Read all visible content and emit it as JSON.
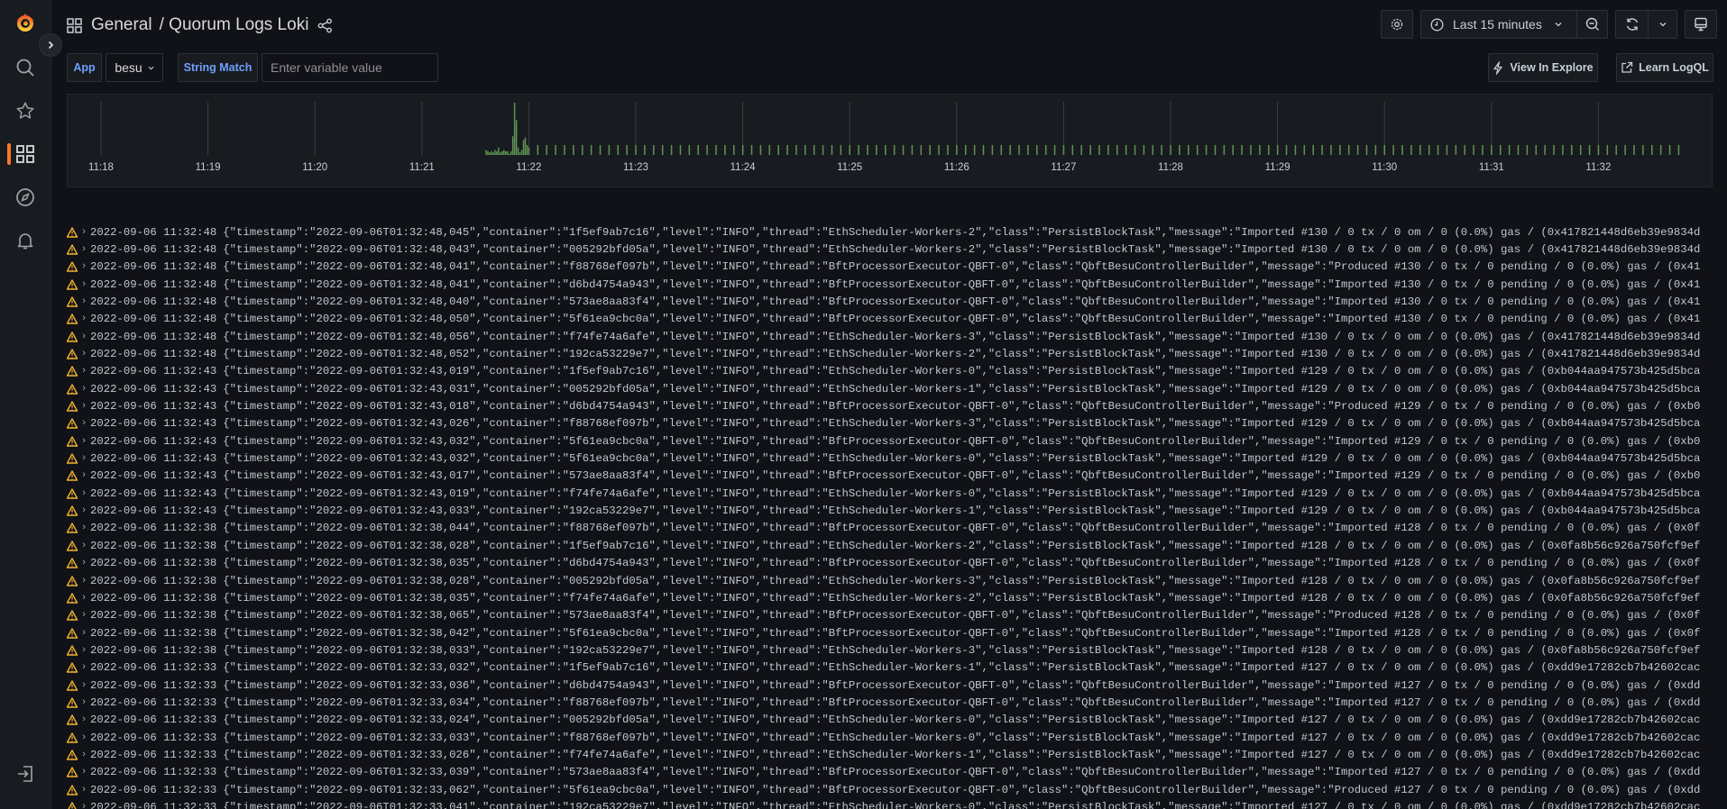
{
  "header": {
    "breadcrumb_folder": "General",
    "breadcrumb_title": "/ Quorum Logs Loki"
  },
  "toolbar": {
    "time_range": "Last 15 minutes",
    "view_in_explore": "View In Explore",
    "learn_logql": "Learn LogQL"
  },
  "variables": {
    "app_label": "App",
    "app_value": "besu",
    "string_match_label": "String Match",
    "string_match_placeholder": "Enter variable value",
    "string_match_value": ""
  },
  "colors": {
    "accent_orange": "#f5782a",
    "label_blue": "#6e9fff",
    "histogram_bar": "#5f9453",
    "warning": "#f2b430"
  },
  "chart_data": {
    "type": "bar",
    "x_tick_labels": [
      "11:18",
      "11:19",
      "11:20",
      "11:21",
      "11:22",
      "11:23",
      "11:24",
      "11:25",
      "11:26",
      "11:27",
      "11:28",
      "11:29",
      "11:30",
      "11:31",
      "11:32"
    ],
    "xlim": [
      "11:17:40",
      "11:33:00"
    ],
    "grid": "vertical",
    "burst": {
      "x": [
        "11:21:36",
        "11:21:37",
        "11:21:38",
        "11:21:39",
        "11:21:40",
        "11:21:41",
        "11:21:42",
        "11:21:43",
        "11:21:44",
        "11:21:45",
        "11:21:46",
        "11:21:47",
        "11:21:48",
        "11:21:49",
        "11:21:50",
        "11:21:51",
        "11:21:52",
        "11:21:53",
        "11:21:54",
        "11:21:55",
        "11:21:56",
        "11:21:57",
        "11:21:58",
        "11:21:59",
        "11:22:00"
      ],
      "values": [
        4,
        3,
        2,
        3,
        2,
        4,
        3,
        6,
        2,
        3,
        4,
        3,
        3,
        1,
        3,
        15,
        42,
        28,
        6,
        2,
        4,
        12,
        14,
        8,
        6
      ]
    },
    "regular": {
      "start": "11:22:05",
      "end": "11:32:45",
      "step_seconds": 5,
      "value": 8
    }
  },
  "logs": [
    {
      "time": "2022-09-06 11:32:48",
      "line": "{\"timestamp\":\"2022-09-06T01:32:48,045\",\"container\":\"1f5ef9ab7c16\",\"level\":\"INFO\",\"thread\":\"EthScheduler-Workers-2\",\"class\":\"PersistBlockTask\",\"message\":\"Imported #130 / 0 tx / 0 om / 0 (0.0%) gas / (0x417821448d6eb39e9834d"
    },
    {
      "time": "2022-09-06 11:32:48",
      "line": "{\"timestamp\":\"2022-09-06T01:32:48,043\",\"container\":\"005292bfd05a\",\"level\":\"INFO\",\"thread\":\"EthScheduler-Workers-2\",\"class\":\"PersistBlockTask\",\"message\":\"Imported #130 / 0 tx / 0 om / 0 (0.0%) gas / (0x417821448d6eb39e9834d"
    },
    {
      "time": "2022-09-06 11:32:48",
      "line": "{\"timestamp\":\"2022-09-06T01:32:48,041\",\"container\":\"f88768ef097b\",\"level\":\"INFO\",\"thread\":\"BftProcessorExecutor-QBFT-0\",\"class\":\"QbftBesuControllerBuilder\",\"message\":\"Produced #130 / 0 tx / 0 pending / 0 (0.0%) gas / (0x41"
    },
    {
      "time": "2022-09-06 11:32:48",
      "line": "{\"timestamp\":\"2022-09-06T01:32:48,041\",\"container\":\"d6bd4754a943\",\"level\":\"INFO\",\"thread\":\"BftProcessorExecutor-QBFT-0\",\"class\":\"QbftBesuControllerBuilder\",\"message\":\"Imported #130 / 0 tx / 0 pending / 0 (0.0%) gas / (0x41"
    },
    {
      "time": "2022-09-06 11:32:48",
      "line": "{\"timestamp\":\"2022-09-06T01:32:48,040\",\"container\":\"573ae8aa83f4\",\"level\":\"INFO\",\"thread\":\"BftProcessorExecutor-QBFT-0\",\"class\":\"QbftBesuControllerBuilder\",\"message\":\"Imported #130 / 0 tx / 0 pending / 0 (0.0%) gas / (0x41"
    },
    {
      "time": "2022-09-06 11:32:48",
      "line": "{\"timestamp\":\"2022-09-06T01:32:48,050\",\"container\":\"5f61ea9cbc0a\",\"level\":\"INFO\",\"thread\":\"BftProcessorExecutor-QBFT-0\",\"class\":\"QbftBesuControllerBuilder\",\"message\":\"Imported #130 / 0 tx / 0 pending / 0 (0.0%) gas / (0x41"
    },
    {
      "time": "2022-09-06 11:32:48",
      "line": "{\"timestamp\":\"2022-09-06T01:32:48,056\",\"container\":\"f74fe74a6afe\",\"level\":\"INFO\",\"thread\":\"EthScheduler-Workers-3\",\"class\":\"PersistBlockTask\",\"message\":\"Imported #130 / 0 tx / 0 om / 0 (0.0%) gas / (0x417821448d6eb39e9834d"
    },
    {
      "time": "2022-09-06 11:32:48",
      "line": "{\"timestamp\":\"2022-09-06T01:32:48,052\",\"container\":\"192ca53229e7\",\"level\":\"INFO\",\"thread\":\"EthScheduler-Workers-2\",\"class\":\"PersistBlockTask\",\"message\":\"Imported #130 / 0 tx / 0 om / 0 (0.0%) gas / (0x417821448d6eb39e9834d"
    },
    {
      "time": "2022-09-06 11:32:43",
      "line": "{\"timestamp\":\"2022-09-06T01:32:43,019\",\"container\":\"1f5ef9ab7c16\",\"level\":\"INFO\",\"thread\":\"EthScheduler-Workers-0\",\"class\":\"PersistBlockTask\",\"message\":\"Imported #129 / 0 tx / 0 om / 0 (0.0%) gas / (0xb044aa947573b425d5bca"
    },
    {
      "time": "2022-09-06 11:32:43",
      "line": "{\"timestamp\":\"2022-09-06T01:32:43,031\",\"container\":\"005292bfd05a\",\"level\":\"INFO\",\"thread\":\"EthScheduler-Workers-1\",\"class\":\"PersistBlockTask\",\"message\":\"Imported #129 / 0 tx / 0 om / 0 (0.0%) gas / (0xb044aa947573b425d5bca"
    },
    {
      "time": "2022-09-06 11:32:43",
      "line": "{\"timestamp\":\"2022-09-06T01:32:43,018\",\"container\":\"d6bd4754a943\",\"level\":\"INFO\",\"thread\":\"BftProcessorExecutor-QBFT-0\",\"class\":\"QbftBesuControllerBuilder\",\"message\":\"Produced #129 / 0 tx / 0 pending / 0 (0.0%) gas / (0xb0"
    },
    {
      "time": "2022-09-06 11:32:43",
      "line": "{\"timestamp\":\"2022-09-06T01:32:43,026\",\"container\":\"f88768ef097b\",\"level\":\"INFO\",\"thread\":\"EthScheduler-Workers-3\",\"class\":\"PersistBlockTask\",\"message\":\"Imported #129 / 0 tx / 0 om / 0 (0.0%) gas / (0xb044aa947573b425d5bca"
    },
    {
      "time": "2022-09-06 11:32:43",
      "line": "{\"timestamp\":\"2022-09-06T01:32:43,032\",\"container\":\"5f61ea9cbc0a\",\"level\":\"INFO\",\"thread\":\"BftProcessorExecutor-QBFT-0\",\"class\":\"QbftBesuControllerBuilder\",\"message\":\"Imported #129 / 0 tx / 0 pending / 0 (0.0%) gas / (0xb0"
    },
    {
      "time": "2022-09-06 11:32:43",
      "line": "{\"timestamp\":\"2022-09-06T01:32:43,032\",\"container\":\"5f61ea9cbc0a\",\"level\":\"INFO\",\"thread\":\"EthScheduler-Workers-0\",\"class\":\"PersistBlockTask\",\"message\":\"Imported #129 / 0 tx / 0 om / 0 (0.0%) gas / (0xb044aa947573b425d5bca"
    },
    {
      "time": "2022-09-06 11:32:43",
      "line": "{\"timestamp\":\"2022-09-06T01:32:43,017\",\"container\":\"573ae8aa83f4\",\"level\":\"INFO\",\"thread\":\"BftProcessorExecutor-QBFT-0\",\"class\":\"QbftBesuControllerBuilder\",\"message\":\"Imported #129 / 0 tx / 0 pending / 0 (0.0%) gas / (0xb0"
    },
    {
      "time": "2022-09-06 11:32:43",
      "line": "{\"timestamp\":\"2022-09-06T01:32:43,019\",\"container\":\"f74fe74a6afe\",\"level\":\"INFO\",\"thread\":\"EthScheduler-Workers-0\",\"class\":\"PersistBlockTask\",\"message\":\"Imported #129 / 0 tx / 0 om / 0 (0.0%) gas / (0xb044aa947573b425d5bca"
    },
    {
      "time": "2022-09-06 11:32:43",
      "line": "{\"timestamp\":\"2022-09-06T01:32:43,033\",\"container\":\"192ca53229e7\",\"level\":\"INFO\",\"thread\":\"EthScheduler-Workers-1\",\"class\":\"PersistBlockTask\",\"message\":\"Imported #129 / 0 tx / 0 om / 0 (0.0%) gas / (0xb044aa947573b425d5bca"
    },
    {
      "time": "2022-09-06 11:32:38",
      "line": "{\"timestamp\":\"2022-09-06T01:32:38,044\",\"container\":\"f88768ef097b\",\"level\":\"INFO\",\"thread\":\"BftProcessorExecutor-QBFT-0\",\"class\":\"QbftBesuControllerBuilder\",\"message\":\"Imported #128 / 0 tx / 0 pending / 0 (0.0%) gas / (0x0f"
    },
    {
      "time": "2022-09-06 11:32:38",
      "line": "{\"timestamp\":\"2022-09-06T01:32:38,028\",\"container\":\"1f5ef9ab7c16\",\"level\":\"INFO\",\"thread\":\"EthScheduler-Workers-2\",\"class\":\"PersistBlockTask\",\"message\":\"Imported #128 / 0 tx / 0 om / 0 (0.0%) gas / (0x0fa8b56c926a750fcf9ef"
    },
    {
      "time": "2022-09-06 11:32:38",
      "line": "{\"timestamp\":\"2022-09-06T01:32:38,035\",\"container\":\"d6bd4754a943\",\"level\":\"INFO\",\"thread\":\"BftProcessorExecutor-QBFT-0\",\"class\":\"QbftBesuControllerBuilder\",\"message\":\"Imported #128 / 0 tx / 0 pending / 0 (0.0%) gas / (0x0f"
    },
    {
      "time": "2022-09-06 11:32:38",
      "line": "{\"timestamp\":\"2022-09-06T01:32:38,028\",\"container\":\"005292bfd05a\",\"level\":\"INFO\",\"thread\":\"EthScheduler-Workers-3\",\"class\":\"PersistBlockTask\",\"message\":\"Imported #128 / 0 tx / 0 om / 0 (0.0%) gas / (0x0fa8b56c926a750fcf9ef"
    },
    {
      "time": "2022-09-06 11:32:38",
      "line": "{\"timestamp\":\"2022-09-06T01:32:38,035\",\"container\":\"f74fe74a6afe\",\"level\":\"INFO\",\"thread\":\"EthScheduler-Workers-2\",\"class\":\"PersistBlockTask\",\"message\":\"Imported #128 / 0 tx / 0 om / 0 (0.0%) gas / (0x0fa8b56c926a750fcf9ef"
    },
    {
      "time": "2022-09-06 11:32:38",
      "line": "{\"timestamp\":\"2022-09-06T01:32:38,065\",\"container\":\"573ae8aa83f4\",\"level\":\"INFO\",\"thread\":\"BftProcessorExecutor-QBFT-0\",\"class\":\"QbftBesuControllerBuilder\",\"message\":\"Produced #128 / 0 tx / 0 pending / 0 (0.0%) gas / (0x0f"
    },
    {
      "time": "2022-09-06 11:32:38",
      "line": "{\"timestamp\":\"2022-09-06T01:32:38,042\",\"container\":\"5f61ea9cbc0a\",\"level\":\"INFO\",\"thread\":\"BftProcessorExecutor-QBFT-0\",\"class\":\"QbftBesuControllerBuilder\",\"message\":\"Imported #128 / 0 tx / 0 pending / 0 (0.0%) gas / (0x0f"
    },
    {
      "time": "2022-09-06 11:32:38",
      "line": "{\"timestamp\":\"2022-09-06T01:32:38,033\",\"container\":\"192ca53229e7\",\"level\":\"INFO\",\"thread\":\"EthScheduler-Workers-3\",\"class\":\"PersistBlockTask\",\"message\":\"Imported #128 / 0 tx / 0 om / 0 (0.0%) gas / (0x0fa8b56c926a750fcf9ef"
    },
    {
      "time": "2022-09-06 11:32:33",
      "line": "{\"timestamp\":\"2022-09-06T01:32:33,032\",\"container\":\"1f5ef9ab7c16\",\"level\":\"INFO\",\"thread\":\"EthScheduler-Workers-1\",\"class\":\"PersistBlockTask\",\"message\":\"Imported #127 / 0 tx / 0 om / 0 (0.0%) gas / (0xdd9e17282cb7b42602cac"
    },
    {
      "time": "2022-09-06 11:32:33",
      "line": "{\"timestamp\":\"2022-09-06T01:32:33,036\",\"container\":\"d6bd4754a943\",\"level\":\"INFO\",\"thread\":\"BftProcessorExecutor-QBFT-0\",\"class\":\"QbftBesuControllerBuilder\",\"message\":\"Imported #127 / 0 tx / 0 pending / 0 (0.0%) gas / (0xdd"
    },
    {
      "time": "2022-09-06 11:32:33",
      "line": "{\"timestamp\":\"2022-09-06T01:32:33,034\",\"container\":\"f88768ef097b\",\"level\":\"INFO\",\"thread\":\"BftProcessorExecutor-QBFT-0\",\"class\":\"QbftBesuControllerBuilder\",\"message\":\"Imported #127 / 0 tx / 0 pending / 0 (0.0%) gas / (0xdd"
    },
    {
      "time": "2022-09-06 11:32:33",
      "line": "{\"timestamp\":\"2022-09-06T01:32:33,024\",\"container\":\"005292bfd05a\",\"level\":\"INFO\",\"thread\":\"EthScheduler-Workers-0\",\"class\":\"PersistBlockTask\",\"message\":\"Imported #127 / 0 tx / 0 om / 0 (0.0%) gas / (0xdd9e17282cb7b42602cac"
    },
    {
      "time": "2022-09-06 11:32:33",
      "line": "{\"timestamp\":\"2022-09-06T01:32:33,033\",\"container\":\"f88768ef097b\",\"level\":\"INFO\",\"thread\":\"EthScheduler-Workers-0\",\"class\":\"PersistBlockTask\",\"message\":\"Imported #127 / 0 tx / 0 om / 0 (0.0%) gas / (0xdd9e17282cb7b42602cac"
    },
    {
      "time": "2022-09-06 11:32:33",
      "line": "{\"timestamp\":\"2022-09-06T01:32:33,026\",\"container\":\"f74fe74a6afe\",\"level\":\"INFO\",\"thread\":\"EthScheduler-Workers-1\",\"class\":\"PersistBlockTask\",\"message\":\"Imported #127 / 0 tx / 0 om / 0 (0.0%) gas / (0xdd9e17282cb7b42602cac"
    },
    {
      "time": "2022-09-06 11:32:33",
      "line": "{\"timestamp\":\"2022-09-06T01:32:33,039\",\"container\":\"573ae8aa83f4\",\"level\":\"INFO\",\"thread\":\"BftProcessorExecutor-QBFT-0\",\"class\":\"QbftBesuControllerBuilder\",\"message\":\"Imported #127 / 0 tx / 0 pending / 0 (0.0%) gas / (0xdd"
    },
    {
      "time": "2022-09-06 11:32:33",
      "line": "{\"timestamp\":\"2022-09-06T01:32:33,062\",\"container\":\"5f61ea9cbc0a\",\"level\":\"INFO\",\"thread\":\"BftProcessorExecutor-QBFT-0\",\"class\":\"QbftBesuControllerBuilder\",\"message\":\"Produced #127 / 0 tx / 0 pending / 0 (0.0%) gas / (0xdd"
    },
    {
      "time": "2022-09-06 11:32:33",
      "line": "{\"timestamp\":\"2022-09-06T01:32:33,041\",\"container\":\"192ca53229e7\",\"level\":\"INFO\",\"thread\":\"EthScheduler-Workers-0\",\"class\":\"PersistBlockTask\",\"message\":\"Imported #127 / 0 tx / 0 om / 0 (0.0%) gas / (0xdd9e17282cb7b42602cac"
    }
  ]
}
